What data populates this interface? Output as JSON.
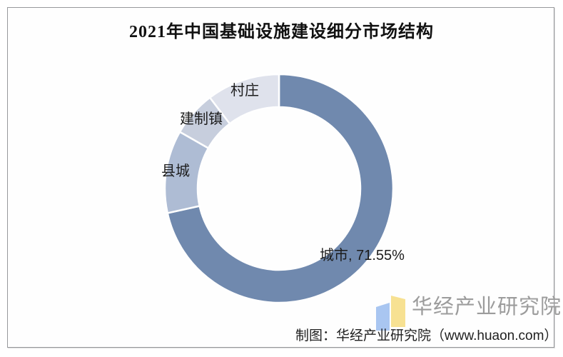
{
  "page": {
    "title": "2021年中国基础设施建设细分市场结构"
  },
  "chart_data": {
    "type": "pie",
    "subtype": "donut",
    "title": "2021年中国基础设施建设细分市场结构",
    "unit": "%",
    "start_angle_deg": 0,
    "direction": "clockwise",
    "inner_radius_ratio": 0.71,
    "legend_position": "none",
    "segments": [
      {
        "label": "城市",
        "value": 71.55,
        "callout": "城市, 71.55%",
        "color": "#7089ae"
      },
      {
        "label": "县城",
        "value": 11.7,
        "callout": "县城",
        "color": "#aebcd4"
      },
      {
        "label": "建制镇",
        "value": 6.4,
        "callout": "建制镇",
        "color": "#c7cedd"
      },
      {
        "label": "村庄",
        "value": 10.35,
        "callout": "村庄",
        "color": "#dfe2ec"
      }
    ]
  },
  "footer": {
    "credit": "制图：华经产业研究院（www.huaon.com）",
    "logo": {
      "name": "华经产业研究院",
      "icon_left_color": "#a9c6f1",
      "icon_right_color": "#f7e192"
    }
  }
}
